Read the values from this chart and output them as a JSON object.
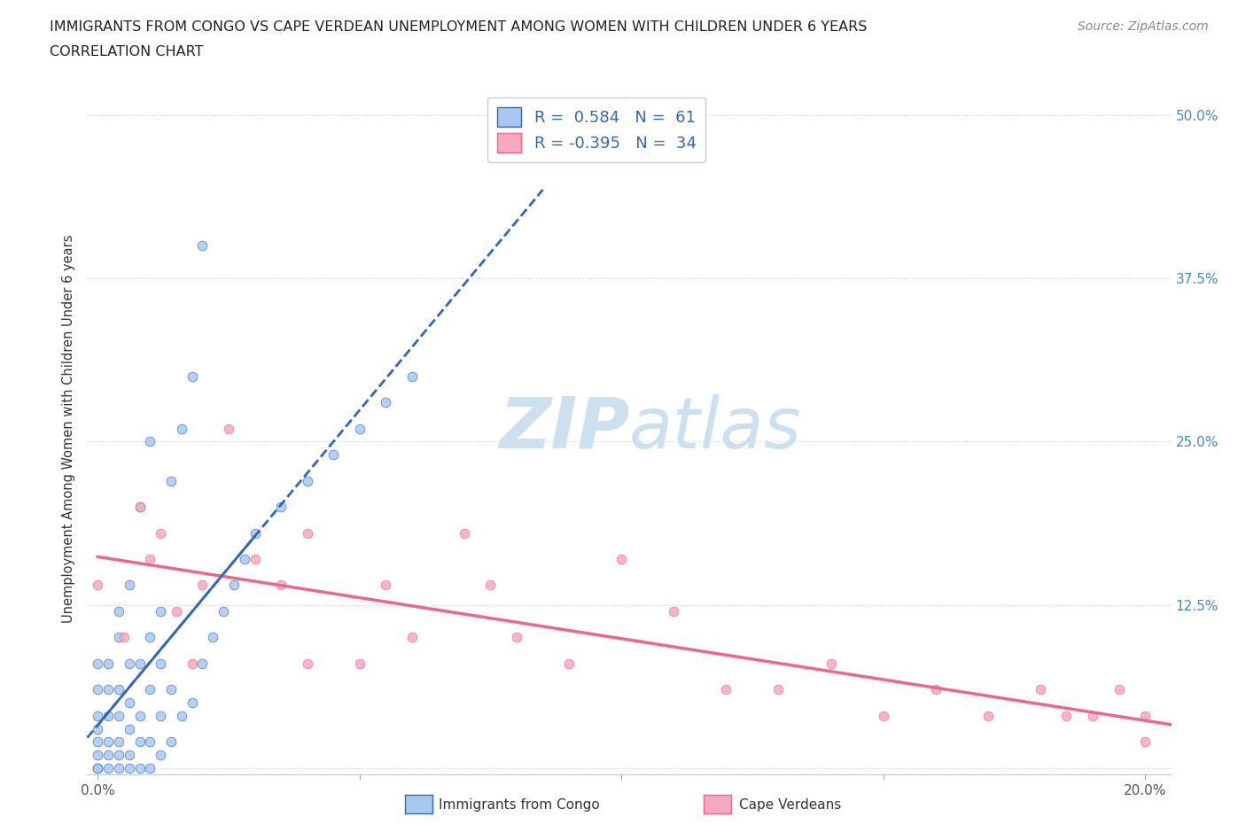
{
  "title_line1": "IMMIGRANTS FROM CONGO VS CAPE VERDEAN UNEMPLOYMENT AMONG WOMEN WITH CHILDREN UNDER 6 YEARS",
  "title_line2": "CORRELATION CHART",
  "source_text": "Source: ZipAtlas.com",
  "ylabel": "Unemployment Among Women with Children Under 6 years",
  "xlim": [
    -0.002,
    0.205
  ],
  "ylim": [
    -0.005,
    0.525
  ],
  "xtick_positions": [
    0.0,
    0.05,
    0.1,
    0.15,
    0.2
  ],
  "xticklabels": [
    "0.0%",
    "",
    "",
    "",
    "20.0%"
  ],
  "ytick_positions": [
    0.0,
    0.125,
    0.25,
    0.375,
    0.5
  ],
  "yticklabels_right": [
    "",
    "12.5%",
    "25.0%",
    "37.5%",
    "50.0%"
  ],
  "congo_R": 0.584,
  "congo_N": 61,
  "cape_verde_R": -0.395,
  "cape_verde_N": 34,
  "congo_color": "#a8c8f0",
  "cape_verde_color": "#f5a8c0",
  "congo_line_color": "#3366bb",
  "cape_verde_line_color": "#ee6688",
  "watermark_color": "#cce0f0",
  "legend_label_congo": "Immigrants from Congo",
  "legend_label_cape": "Cape Verdeans",
  "congo_scatter_x": [
    0.0,
    0.0,
    0.0,
    0.0,
    0.0,
    0.0,
    0.0,
    0.0,
    0.002,
    0.002,
    0.002,
    0.002,
    0.002,
    0.002,
    0.004,
    0.004,
    0.004,
    0.004,
    0.004,
    0.004,
    0.004,
    0.006,
    0.006,
    0.006,
    0.006,
    0.006,
    0.006,
    0.008,
    0.008,
    0.008,
    0.008,
    0.008,
    0.01,
    0.01,
    0.01,
    0.01,
    0.01,
    0.012,
    0.012,
    0.012,
    0.012,
    0.014,
    0.014,
    0.014,
    0.016,
    0.016,
    0.018,
    0.018,
    0.02,
    0.02,
    0.022,
    0.024,
    0.026,
    0.028,
    0.03,
    0.035,
    0.04,
    0.045,
    0.05,
    0.055,
    0.06
  ],
  "congo_scatter_y": [
    0.0,
    0.0,
    0.01,
    0.02,
    0.03,
    0.04,
    0.06,
    0.08,
    0.0,
    0.01,
    0.02,
    0.04,
    0.06,
    0.08,
    0.0,
    0.01,
    0.02,
    0.04,
    0.06,
    0.1,
    0.12,
    0.0,
    0.01,
    0.03,
    0.05,
    0.08,
    0.14,
    0.0,
    0.02,
    0.04,
    0.08,
    0.2,
    0.0,
    0.02,
    0.06,
    0.1,
    0.25,
    0.01,
    0.04,
    0.08,
    0.12,
    0.02,
    0.06,
    0.22,
    0.04,
    0.26,
    0.05,
    0.3,
    0.08,
    0.4,
    0.1,
    0.12,
    0.14,
    0.16,
    0.18,
    0.2,
    0.22,
    0.24,
    0.26,
    0.28,
    0.3
  ],
  "cape_scatter_x": [
    0.0,
    0.005,
    0.008,
    0.01,
    0.012,
    0.015,
    0.018,
    0.02,
    0.025,
    0.03,
    0.035,
    0.04,
    0.04,
    0.05,
    0.055,
    0.06,
    0.07,
    0.075,
    0.08,
    0.09,
    0.1,
    0.11,
    0.12,
    0.13,
    0.14,
    0.15,
    0.16,
    0.17,
    0.18,
    0.185,
    0.19,
    0.195,
    0.2,
    0.2
  ],
  "cape_scatter_y": [
    0.14,
    0.1,
    0.2,
    0.16,
    0.18,
    0.12,
    0.08,
    0.14,
    0.26,
    0.16,
    0.14,
    0.18,
    0.08,
    0.08,
    0.14,
    0.1,
    0.18,
    0.14,
    0.1,
    0.08,
    0.16,
    0.12,
    0.06,
    0.06,
    0.08,
    0.04,
    0.06,
    0.04,
    0.06,
    0.04,
    0.04,
    0.06,
    0.04,
    0.02
  ]
}
